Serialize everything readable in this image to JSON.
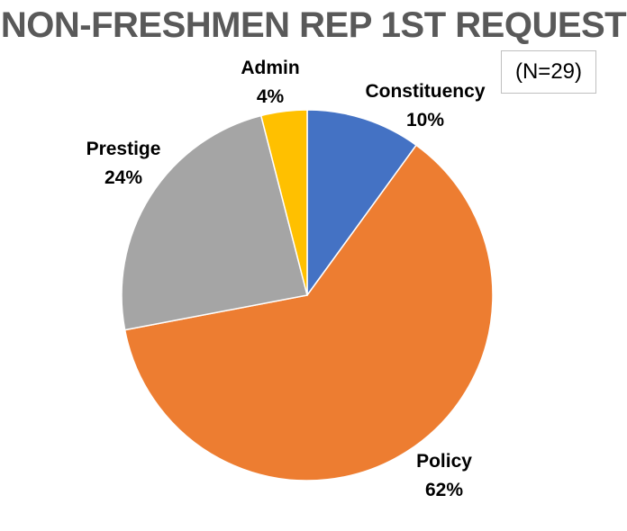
{
  "title": "NON-FRESHMEN REP 1ST REQUEST",
  "sample_size": "(N=29)",
  "chart_data": {
    "type": "pie",
    "title": "NON-FRESHMEN REP 1ST REQUEST",
    "note": "(N=29)",
    "start": "12 o'clock, clockwise",
    "slices": [
      {
        "label": "Constituency",
        "value": 10,
        "value_label": "10%",
        "color": "#4472C4"
      },
      {
        "label": "Policy",
        "value": 62,
        "value_label": "62%",
        "color": "#ED7D31"
      },
      {
        "label": "Prestige",
        "value": 24,
        "value_label": "24%",
        "color": "#A5A5A5"
      },
      {
        "label": "Admin",
        "value": 4,
        "value_label": "4%",
        "color": "#FFC000"
      }
    ]
  }
}
